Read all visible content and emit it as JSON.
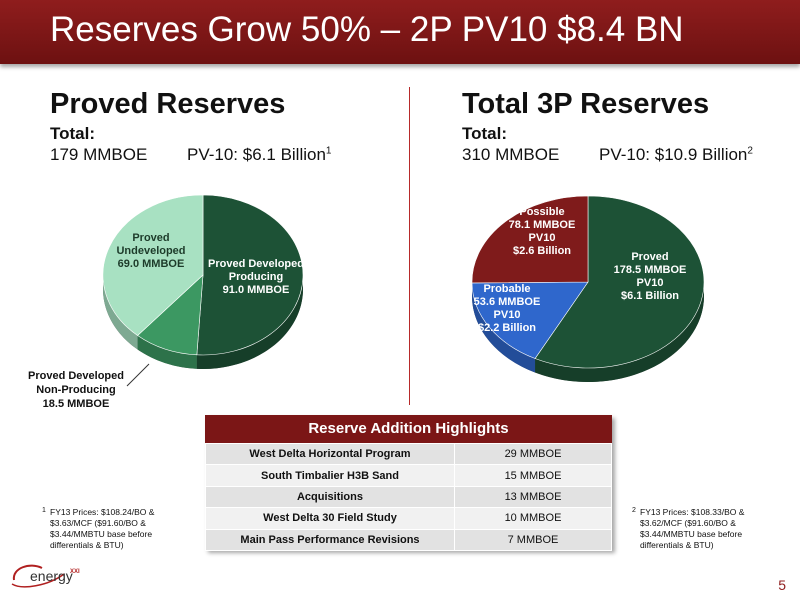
{
  "title": "Reserves Grow 50% – 2P PV10 $8.4 BN",
  "left": {
    "heading": "Proved Reserves",
    "total_label": "Total:",
    "total_value": "179 MMBOE",
    "pv_label": "PV-10: $6.1 Billion",
    "pv_sup": "1",
    "slices": [
      {
        "lines": [
          "Proved Developed",
          "Producing",
          "91.0 MMBOE"
        ],
        "value": 91.0,
        "color": "#1d5236"
      },
      {
        "lines": [
          "Proved Developed",
          "Non-Producing",
          "18.5 MMBOE"
        ],
        "value": 18.5,
        "color": "#3c9862"
      },
      {
        "lines": [
          "Proved",
          "Undeveloped",
          "69.0 MMBOE"
        ],
        "value": 69.0,
        "color": "#a8e1c2"
      }
    ]
  },
  "right": {
    "heading": "Total 3P Reserves",
    "total_label": "Total:",
    "total_value": "310 MMBOE",
    "pv_label": "PV-10: $10.9 Billion",
    "pv_sup": "2",
    "slices": [
      {
        "lines": [
          "Proved",
          "178.5 MMBOE",
          "PV10",
          "$6.1 Billion"
        ],
        "value": 178.5,
        "color": "#1d5236"
      },
      {
        "lines": [
          "Probable",
          "53.6 MMBOE",
          "PV10",
          "$2.2 Billion"
        ],
        "value": 53.6,
        "color": "#2f67cc"
      },
      {
        "lines": [
          "Possible",
          "78.1 MMBOE",
          "PV10",
          "$2.6 Billion"
        ],
        "value": 78.1,
        "color": "#7f1b1b"
      }
    ]
  },
  "highlights": {
    "header": "Reserve Addition Highlights",
    "rows": [
      {
        "name": "West Delta Horizontal Program",
        "value": "29 MMBOE"
      },
      {
        "name": "South Timbalier H3B Sand",
        "value": "15 MMBOE"
      },
      {
        "name": "Acquisitions",
        "value": "13 MMBOE"
      },
      {
        "name": "West Delta 30 Field Study",
        "value": "10 MMBOE"
      },
      {
        "name": "Main Pass Performance Revisions",
        "value": "7 MMBOE"
      }
    ]
  },
  "footnotes": {
    "left": {
      "num": "1",
      "text": "FY13 Prices: $108.24/BO & $3.63/MCF ($91.60/BO & $3.44/MMBTU base before differentials & BTU)"
    },
    "right": {
      "num": "2",
      "text": "FY13 Prices: $108.33/BO & $3.62/MCF ($91.60/BO & $3.44/MMBTU base before differentials & BTU)"
    }
  },
  "logo_text": "energy",
  "logo_sup": "XXI",
  "page_number": "5"
}
